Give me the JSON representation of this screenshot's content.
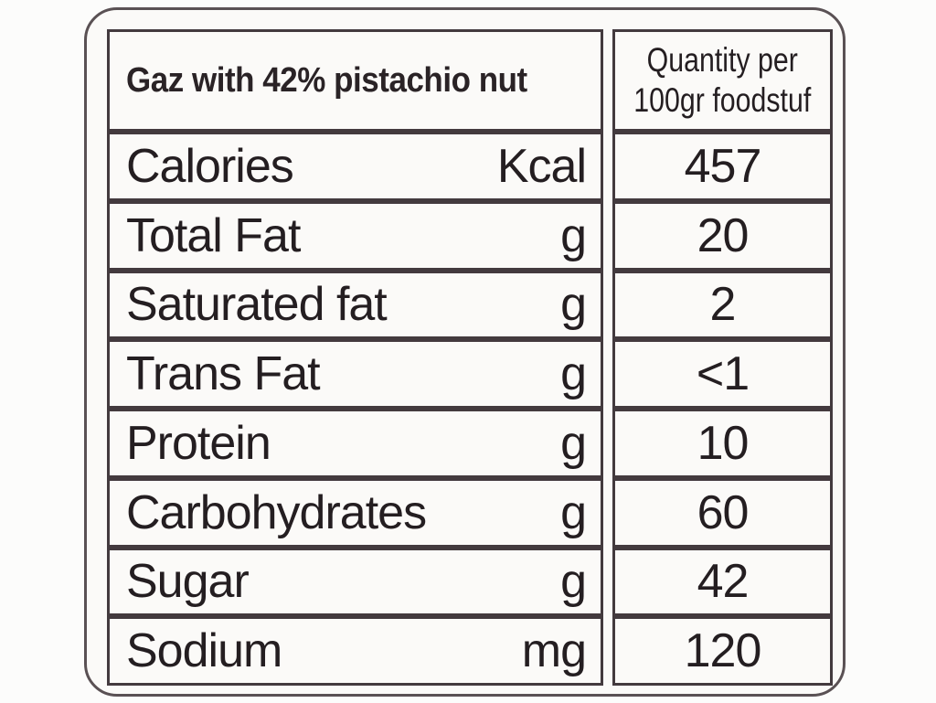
{
  "label": {
    "title": "Gaz with 42% pistachio nut",
    "quantity_header": {
      "line1": "Quantity per",
      "line2": "100gr foodstuf"
    },
    "rows": [
      {
        "name": "Calories",
        "unit": "Kcal",
        "value": "457"
      },
      {
        "name": "Total Fat",
        "unit": "g",
        "value": "20"
      },
      {
        "name": "Saturated fat",
        "unit": "g",
        "value": "2"
      },
      {
        "name": "Trans Fat",
        "unit": "g",
        "value": "<1"
      },
      {
        "name": "Protein",
        "unit": "g",
        "value": "10"
      },
      {
        "name": "Carbohydrates",
        "unit": "g",
        "value": "60"
      },
      {
        "name": "Sugar",
        "unit": "g",
        "value": "42"
      },
      {
        "name": "Sodium",
        "unit": "mg",
        "value": "120"
      }
    ]
  },
  "colors": {
    "text": "#241e21",
    "border": "#433a3e",
    "outer_border": "#5a5154",
    "paper": "#fbfaf8"
  }
}
